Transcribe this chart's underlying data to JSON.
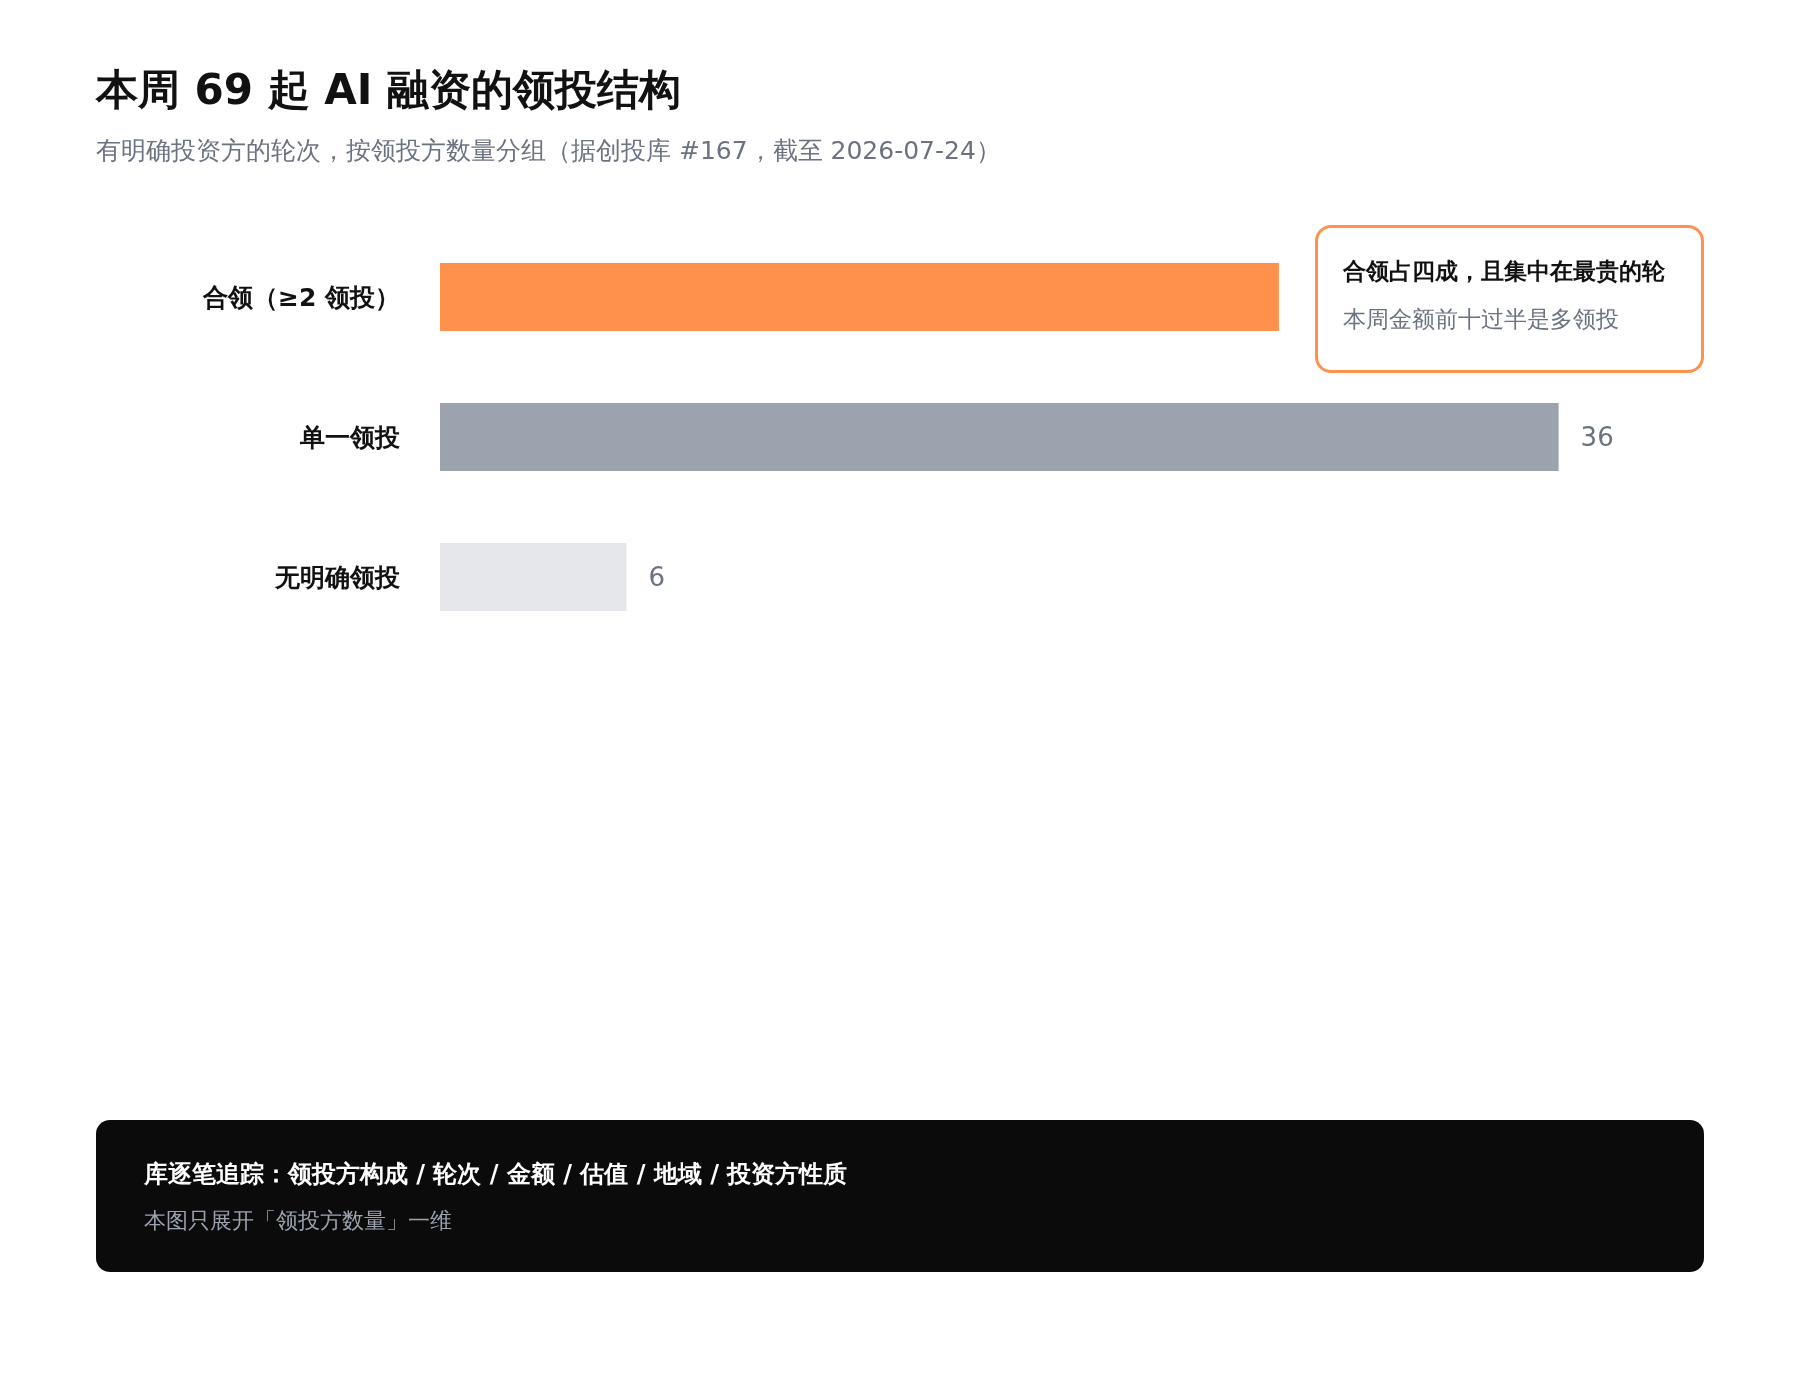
{
  "chart_data": {
    "type": "bar",
    "orientation": "horizontal",
    "title": "本周 69 起 AI 融资的领投结构",
    "subtitle": "有明确投资方的轮次，按领投方数量分组（据创投库 #167，截至 2026-07-24）",
    "categories": [
      "合领（≥2 领投）",
      "单一领投",
      "无明确领投"
    ],
    "values": [
      27,
      36,
      6
    ],
    "colors": [
      "#ff914d",
      "#9ca3af",
      "#e5e7eb"
    ],
    "value_labels": [
      null,
      "36",
      "6"
    ],
    "annotations": [
      {
        "text": "合领占四成，且集中在最贵的轮",
        "x": 27,
        "y": "合领（≥2 领投）"
      },
      {
        "text": "本周金额前十过半是多领投",
        "x": 27,
        "y": "合领（≥2 领投）"
      },
      "库逐笔追踪：领投方构成 / 轮次 / 金额 / 估值 / 地域 / 投资方性质",
      "本图只展开「领投方数量」一维"
    ]
  }
}
